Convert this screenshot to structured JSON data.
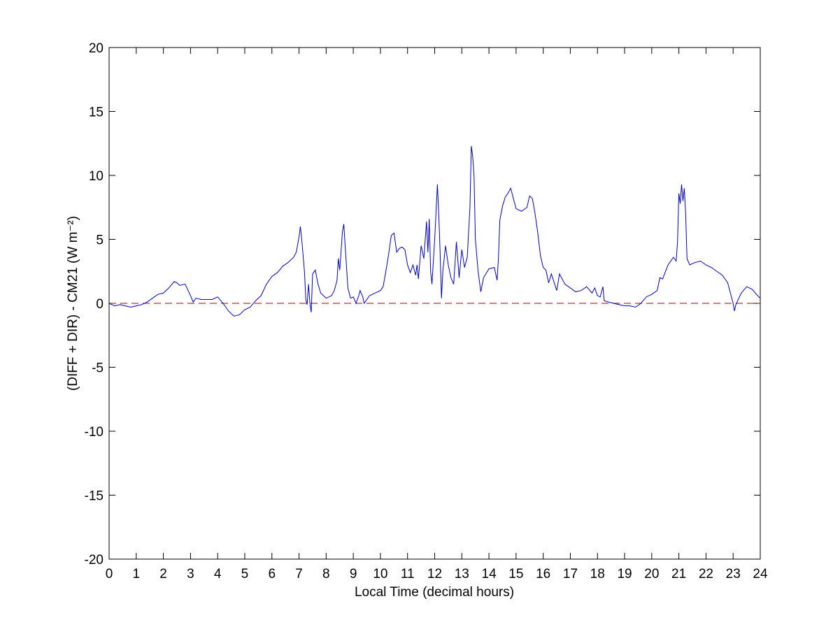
{
  "chart_data": {
    "type": "line",
    "xlabel": "Local Time (decimal hours)",
    "ylabel": "(DIFF + DIR) - CM21 (W m⁻²)",
    "xlim": [
      0,
      24
    ],
    "ylim": [
      -20,
      20
    ],
    "xticks": [
      0,
      1,
      2,
      3,
      4,
      5,
      6,
      7,
      8,
      9,
      10,
      11,
      12,
      13,
      14,
      15,
      16,
      17,
      18,
      19,
      20,
      21,
      22,
      23,
      24
    ],
    "yticks": [
      -20,
      -15,
      -10,
      -5,
      0,
      5,
      10,
      15,
      20
    ],
    "grid": false,
    "reference_line": {
      "value": 0,
      "color": "#c03030"
    },
    "series": [
      {
        "color": "#0000c8",
        "x": [
          0,
          0.2,
          0.4,
          0.6,
          0.8,
          1.0,
          1.2,
          1.4,
          1.6,
          1.8,
          2.0,
          2.2,
          2.4,
          2.5,
          2.6,
          2.8,
          3.0,
          3.1,
          3.2,
          3.4,
          3.6,
          3.8,
          4.0,
          4.2,
          4.4,
          4.6,
          4.8,
          5.0,
          5.2,
          5.4,
          5.6,
          5.8,
          6.0,
          6.2,
          6.4,
          6.6,
          6.8,
          6.9,
          7.0,
          7.05,
          7.1,
          7.2,
          7.25,
          7.3,
          7.35,
          7.4,
          7.45,
          7.5,
          7.6,
          7.7,
          7.8,
          8.0,
          8.2,
          8.3,
          8.4,
          8.45,
          8.5,
          8.6,
          8.65,
          8.7,
          8.8,
          8.9,
          9.0,
          9.1,
          9.2,
          9.25,
          9.35,
          9.4,
          9.6,
          9.8,
          10.0,
          10.1,
          10.2,
          10.3,
          10.4,
          10.5,
          10.6,
          10.7,
          10.8,
          10.9,
          11.0,
          11.1,
          11.2,
          11.3,
          11.35,
          11.4,
          11.5,
          11.6,
          11.7,
          11.75,
          11.8,
          11.85,
          11.9,
          12.0,
          12.1,
          12.15,
          12.2,
          12.25,
          12.3,
          12.4,
          12.5,
          12.6,
          12.7,
          12.8,
          12.85,
          12.9,
          13.0,
          13.1,
          13.2,
          13.3,
          13.35,
          13.4,
          13.45,
          13.5,
          13.6,
          13.7,
          13.8,
          14.0,
          14.2,
          14.3,
          14.35,
          14.4,
          14.5,
          14.6,
          14.7,
          14.8,
          14.9,
          15.0,
          15.2,
          15.4,
          15.5,
          15.6,
          15.7,
          15.8,
          15.9,
          16.0,
          16.1,
          16.2,
          16.3,
          16.5,
          16.6,
          16.8,
          17.0,
          17.2,
          17.4,
          17.6,
          17.8,
          17.9,
          18.0,
          18.1,
          18.2,
          18.25,
          18.4,
          18.6,
          18.8,
          19.0,
          19.2,
          19.4,
          19.6,
          19.8,
          20.0,
          20.2,
          20.3,
          20.4,
          20.6,
          20.8,
          20.9,
          20.95,
          21.0,
          21.05,
          21.1,
          21.15,
          21.2,
          21.25,
          21.3,
          21.4,
          21.6,
          21.8,
          22.0,
          22.2,
          22.4,
          22.6,
          22.8,
          23.0,
          23.05,
          23.1,
          23.3,
          23.5,
          23.7,
          23.9,
          24.0
        ],
        "values": [
          0.0,
          -0.2,
          -0.1,
          -0.2,
          -0.3,
          -0.2,
          -0.1,
          0.1,
          0.4,
          0.7,
          0.8,
          1.2,
          1.7,
          1.6,
          1.4,
          1.5,
          0.6,
          0.1,
          0.4,
          0.3,
          0.3,
          0.3,
          0.5,
          0.0,
          -0.6,
          -1.0,
          -0.9,
          -0.5,
          -0.3,
          0.2,
          0.6,
          1.5,
          2.1,
          2.4,
          2.9,
          3.2,
          3.6,
          4.0,
          5.2,
          6.0,
          5.0,
          2.5,
          0.3,
          -0.1,
          1.5,
          0.0,
          -0.7,
          2.3,
          2.6,
          1.5,
          0.8,
          0.4,
          0.6,
          1.0,
          1.8,
          3.5,
          2.6,
          5.6,
          6.2,
          4.5,
          1.2,
          0.4,
          0.5,
          0.0,
          0.6,
          1.0,
          0.5,
          0.0,
          0.6,
          0.8,
          1.0,
          1.3,
          2.5,
          3.8,
          5.3,
          5.5,
          4.0,
          4.3,
          4.4,
          4.2,
          3.0,
          2.4,
          3.0,
          2.2,
          3.0,
          1.9,
          4.5,
          3.5,
          6.4,
          4.0,
          6.6,
          2.5,
          1.5,
          5.0,
          9.3,
          7.0,
          4.0,
          0.4,
          2.5,
          4.5,
          3.0,
          2.0,
          1.5,
          4.8,
          3.5,
          2.0,
          4.2,
          2.8,
          3.6,
          7.5,
          12.3,
          11.5,
          10.0,
          5.0,
          2.5,
          0.9,
          2.0,
          2.7,
          2.8,
          1.8,
          3.5,
          6.5,
          7.6,
          8.3,
          8.6,
          9.0,
          8.2,
          7.4,
          7.2,
          7.5,
          8.4,
          8.2,
          7.0,
          5.5,
          3.7,
          2.8,
          2.6,
          1.6,
          2.3,
          1.0,
          2.3,
          1.5,
          1.2,
          0.9,
          1.0,
          1.3,
          0.8,
          1.2,
          0.6,
          0.5,
          1.3,
          0.2,
          0.1,
          0.0,
          -0.1,
          -0.2,
          -0.2,
          -0.3,
          0.0,
          0.5,
          0.7,
          1.0,
          2.0,
          1.9,
          3.0,
          3.6,
          3.3,
          4.8,
          8.6,
          7.8,
          9.3,
          8.0,
          9.0,
          7.0,
          3.5,
          3.0,
          3.2,
          3.3,
          3.0,
          2.8,
          2.5,
          2.2,
          1.6,
          0.0,
          -0.6,
          -0.1,
          0.8,
          1.3,
          1.1,
          0.6,
          0.4
        ]
      }
    ]
  }
}
